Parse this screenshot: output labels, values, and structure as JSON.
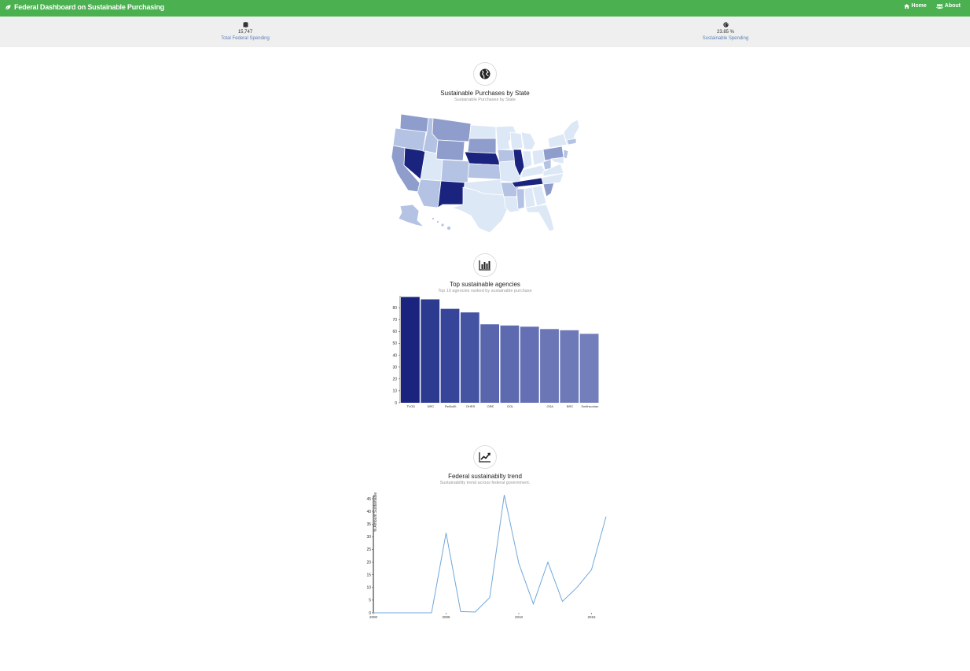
{
  "navbar": {
    "brand_icon": "leaf-icon",
    "title": "Federal Dashboard on Sustainable Purchasing",
    "links": [
      {
        "label": "Home",
        "icon": "home-icon"
      },
      {
        "label": "About",
        "icon": "users-icon"
      }
    ],
    "color": "#4bb04f"
  },
  "stats": [
    {
      "icon": "database-icon",
      "value": "15,747",
      "label": "Total Federal Spending"
    },
    {
      "icon": "globe-icon",
      "value": "23.85 %",
      "label": "Sustainable Spending"
    }
  ],
  "sections": {
    "map": {
      "icon": "globe-icon",
      "title": "Sustainable Purchases by State",
      "subtitle": "Sustainable Purchases by State"
    },
    "agencies": {
      "icon": "bar-chart-icon",
      "title": "Top sustainable agencies",
      "subtitle": "Top 10 agencies ranked by sustainable purchase"
    },
    "trend": {
      "icon": "line-chart-icon",
      "title": "Federal sustainabilty trend",
      "subtitle": "Sustainability trend across federal government."
    }
  },
  "chart_data": [
    {
      "type": "bar",
      "categories": [
        "TVOD",
        "NRC",
        "ReMaSt",
        "OHRS",
        "ORE",
        "OOL",
        "",
        "GSA",
        "BRC",
        "Smithsonian"
      ],
      "values": [
        89,
        87,
        79,
        76,
        66,
        65,
        64,
        62,
        61,
        58
      ],
      "ylim": [
        0,
        90
      ],
      "yticks": [
        0,
        10,
        20,
        30,
        40,
        50,
        60,
        70,
        80
      ],
      "colors": [
        "#1a237e",
        "#2c3a8f",
        "#36449a",
        "#4554a2",
        "#5966ad",
        "#5d6aaf",
        "#6470b3",
        "#6a76b6",
        "#6e7ab8",
        "#737fbb"
      ]
    },
    {
      "type": "line",
      "x": [
        2000,
        2001,
        2002,
        2003,
        2004,
        2005,
        2006,
        2007,
        2008,
        2009,
        2010,
        2011,
        2012,
        2013,
        2014,
        2015,
        2016
      ],
      "values": [
        0,
        0,
        0,
        0,
        0,
        31.5,
        0.5,
        0.3,
        6,
        46.5,
        19.5,
        3.5,
        20,
        4.5,
        10,
        17,
        38
      ],
      "ylabel": "% Amount Sustainable",
      "ylim": [
        0,
        45
      ],
      "yticks": [
        0,
        5,
        10,
        15,
        20,
        25,
        30,
        35,
        40,
        45
      ],
      "xticks": [
        2000,
        2005,
        2010,
        2015
      ],
      "color": "#6fa8dc"
    }
  ],
  "map_colors": {
    "darkest": "#1a237e",
    "dark": "#4554a2",
    "mid": "#8f9dcc",
    "light": "#b4c3e4",
    "lightest": "#dde8f7"
  }
}
